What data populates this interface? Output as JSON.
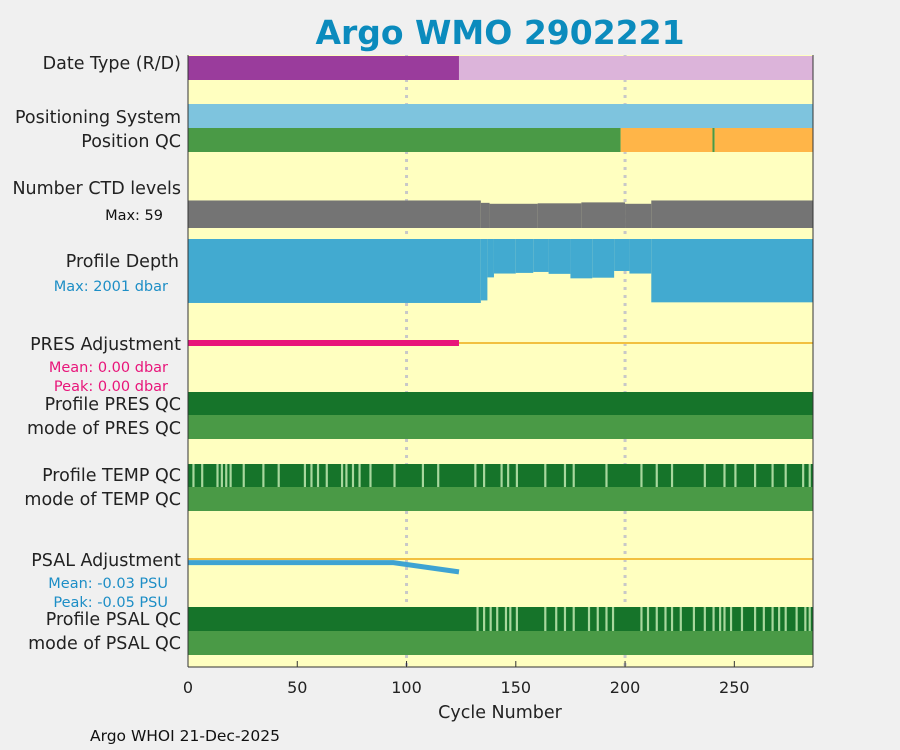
{
  "title": "Argo WMO 2902221",
  "footer": "Argo WHOI 21-Dec-2025",
  "xlabel": "Cycle Number",
  "colors": {
    "title": "#0b8bbd",
    "background": "#ffffc0",
    "realtime": "#9a3c9c",
    "delayed": "#dcb4da",
    "positioning": "#7ec4de",
    "qc_good": "#4a9a46",
    "qc_probable": "#ffb548",
    "prof_A": "#16742a",
    "prof_B": "#a9d89e",
    "ctd": "#747474",
    "depth": "#42aad0",
    "pres_adj": "#e8157a",
    "psal_adj": "#3ea3d2",
    "zero_line": "#f2c040",
    "gridline": "#c8c8c8"
  },
  "rows": {
    "date_type": "Date Type (R/D)",
    "positioning": "Positioning System",
    "position_qc": "Position QC",
    "ctd_levels": "Number CTD levels",
    "ctd_max": "Max: 59",
    "profile_depth": "Profile Depth",
    "depth_max": "Max: 2001 dbar",
    "pres_adj": "PRES Adjustment",
    "pres_mean": "Mean: 0.00 dbar",
    "pres_peak": "Peak: 0.00 dbar",
    "prof_pres_qc": "Profile PRES QC",
    "mode_pres_qc": "mode of PRES QC",
    "prof_temp_qc": "Profile TEMP QC",
    "mode_temp_qc": "mode of TEMP QC",
    "psal_adj": "PSAL Adjustment",
    "psal_mean": "Mean: -0.03 PSU",
    "psal_peak": "Peak: -0.05 PSU",
    "prof_psal_qc": "Profile PSAL QC",
    "mode_psal_qc": "mode of PSAL QC"
  },
  "chart_data": {
    "type": "bar",
    "title": "Argo WMO 2902221",
    "xlabel": "Cycle Number",
    "xlim": [
      0,
      286
    ],
    "xticks": [
      0,
      50,
      100,
      150,
      200,
      250
    ],
    "gridlines_x": [
      100,
      200
    ],
    "date_type": [
      {
        "from": 0,
        "to": 124,
        "mode": "R"
      },
      {
        "from": 124,
        "to": 286,
        "mode": "D"
      }
    ],
    "position_qc": [
      {
        "from": 0,
        "to": 198,
        "qc": "good"
      },
      {
        "from": 198,
        "to": 240,
        "qc": "probable"
      },
      {
        "from": 240,
        "to": 241,
        "qc": "good"
      },
      {
        "from": 241,
        "to": 286,
        "qc": "probable"
      }
    ],
    "ctd_levels_max": 59,
    "ctd_levels": [
      {
        "from": 0,
        "to": 134,
        "value": 58
      },
      {
        "from": 134,
        "to": 138,
        "value": 53
      },
      {
        "from": 138,
        "to": 160,
        "value": 51
      },
      {
        "from": 160,
        "to": 180,
        "value": 52
      },
      {
        "from": 180,
        "to": 200,
        "value": 54
      },
      {
        "from": 200,
        "to": 212,
        "value": 51
      },
      {
        "from": 212,
        "to": 286,
        "value": 58
      }
    ],
    "profile_depth_max": 2001,
    "profile_depth": [
      {
        "from": 0,
        "to": 134,
        "value": 2000
      },
      {
        "from": 134,
        "to": 137,
        "value": 1920
      },
      {
        "from": 137,
        "to": 140,
        "value": 1200
      },
      {
        "from": 140,
        "to": 150,
        "value": 1080
      },
      {
        "from": 150,
        "to": 158,
        "value": 1060
      },
      {
        "from": 158,
        "to": 165,
        "value": 1030
      },
      {
        "from": 165,
        "to": 175,
        "value": 1090
      },
      {
        "from": 175,
        "to": 185,
        "value": 1230
      },
      {
        "from": 185,
        "to": 195,
        "value": 1210
      },
      {
        "from": 195,
        "to": 202,
        "value": 1000
      },
      {
        "from": 202,
        "to": 212,
        "value": 1080
      },
      {
        "from": 212,
        "to": 286,
        "value": 1980
      }
    ],
    "pres_adjustment": {
      "from": 0,
      "to": 124,
      "mean": 0.0,
      "peak": 0.0
    },
    "psal_adjustment": [
      [
        0,
        -0.03
      ],
      [
        94,
        -0.03
      ],
      [
        124,
        -0.052
      ]
    ],
    "prof_pres_qc": "A",
    "mode_pres_qc": "good",
    "prof_temp_qc_B_cycles": [
      2,
      6,
      13,
      15,
      17,
      19,
      25,
      34,
      41,
      53,
      56,
      59,
      63,
      70,
      72,
      75,
      78,
      83,
      94,
      107,
      114,
      131,
      135,
      143,
      146,
      150,
      163,
      172,
      176,
      191,
      207,
      214,
      221,
      236,
      245,
      250,
      259,
      267,
      273,
      281,
      284
    ],
    "mode_temp_qc": "good",
    "prof_psal_qc_B_cycles": [
      132,
      135,
      138,
      141,
      145,
      147,
      150,
      163,
      168,
      172,
      176,
      183,
      187,
      191,
      194,
      207,
      210,
      214,
      218,
      221,
      225,
      231,
      236,
      240,
      243,
      245,
      248,
      253,
      259,
      263,
      267,
      270,
      273,
      278,
      282,
      284
    ],
    "mode_psal_qc": "good"
  }
}
